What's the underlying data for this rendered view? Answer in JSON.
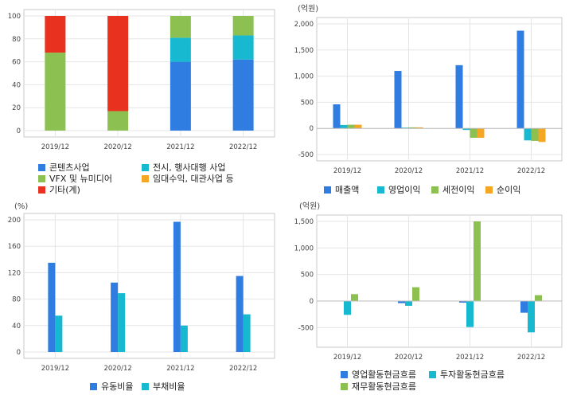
{
  "colors": {
    "blue": "#2f7de1",
    "cyan": "#16b9cf",
    "green": "#8cc152",
    "orange": "#f5a623",
    "red": "#e8321f",
    "grid": "#e5e5e5",
    "frame": "#c8c8c8"
  },
  "chart_data": [
    {
      "type": "bar",
      "stacked": true,
      "unit": "",
      "categories": [
        "2019/12",
        "2020/12",
        "2021/12",
        "2022/12"
      ],
      "ylim": [
        0,
        100
      ],
      "yticks": [
        "0",
        "20",
        "40",
        "60",
        "80",
        "100"
      ],
      "series": [
        {
          "name": "콘텐츠사업",
          "color": "blue",
          "values": [
            0,
            0,
            60,
            62
          ]
        },
        {
          "name": "전시, 행사대행 사업",
          "color": "cyan",
          "values": [
            0,
            0,
            21,
            21
          ]
        },
        {
          "name": "VFX 및 뉴미디어",
          "color": "green",
          "values": [
            68,
            17,
            19,
            17
          ]
        },
        {
          "name": "임대수익, 대관사업 등",
          "color": "orange",
          "values": [
            0,
            0,
            0,
            0
          ]
        },
        {
          "name": "기타(계)",
          "color": "red",
          "values": [
            32,
            83,
            0,
            0
          ]
        }
      ]
    },
    {
      "type": "bar",
      "unit": "(억원)",
      "categories": [
        "2019/12",
        "2020/12",
        "2021/12",
        "2022/12"
      ],
      "ylim": [
        -500,
        2000
      ],
      "yticks": [
        "-500",
        "0",
        "500",
        "1,000",
        "1,500",
        "2,000"
      ],
      "series": [
        {
          "name": "매출액",
          "color": "blue",
          "values": [
            460,
            1100,
            1210,
            1870
          ]
        },
        {
          "name": "영업이익",
          "color": "cyan",
          "values": [
            65,
            15,
            -30,
            -230
          ]
        },
        {
          "name": "세전이익",
          "color": "green",
          "values": [
            70,
            20,
            -180,
            -240
          ]
        },
        {
          "name": "순이익",
          "color": "orange",
          "values": [
            70,
            20,
            -180,
            -260
          ]
        }
      ]
    },
    {
      "type": "bar",
      "unit": "(%)",
      "categories": [
        "2019/12",
        "2020/12",
        "2021/12",
        "2022/12"
      ],
      "ylim": [
        0,
        200
      ],
      "yticks": [
        "0",
        "40",
        "80",
        "120",
        "160",
        "200"
      ],
      "series": [
        {
          "name": "유동비율",
          "color": "blue",
          "values": [
            135,
            105,
            197,
            115
          ]
        },
        {
          "name": "부채비율",
          "color": "cyan",
          "values": [
            55,
            89,
            40,
            57
          ]
        }
      ]
    },
    {
      "type": "bar",
      "unit": "(억원)",
      "categories": [
        "2019/12",
        "2020/12",
        "2021/12",
        "2022/12"
      ],
      "ylim": [
        -750,
        1500
      ],
      "yticks": [
        "-500",
        "0",
        "500",
        "1,000",
        "1,500"
      ],
      "series": [
        {
          "name": "영업활동현금흐름",
          "color": "blue",
          "values": [
            0,
            -40,
            -30,
            -220
          ]
        },
        {
          "name": "투자활동현금흐름",
          "color": "cyan",
          "values": [
            -260,
            -90,
            -490,
            -590
          ]
        },
        {
          "name": "재무활동현금흐름",
          "color": "green",
          "values": [
            130,
            260,
            1500,
            110
          ]
        }
      ]
    }
  ]
}
